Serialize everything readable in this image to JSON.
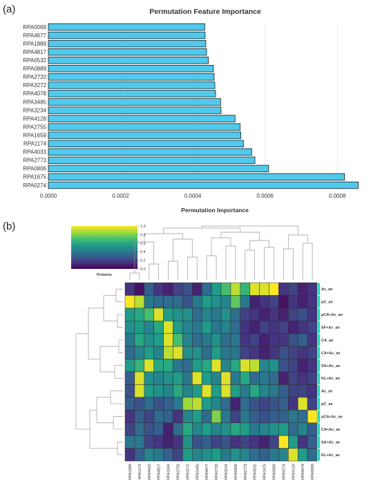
{
  "panels": {
    "a": "(a)",
    "b": "(b)"
  },
  "colors": {
    "bar_fill": "#4fc9ec",
    "bar_stroke": "#1a1a1a",
    "grid": "#e6e6e6",
    "row_side": "#22d8b8"
  },
  "chart_data": [
    {
      "type": "bar",
      "orientation": "horizontal",
      "title": "Permutation Feature Importance",
      "xlabel": "Permutation Importance",
      "ylabel": "",
      "xlim": [
        0,
        0.00088
      ],
      "xticks": [
        "0.0000",
        "0.0002",
        "0.0004",
        "0.0006",
        "0.0008"
      ],
      "xtick_values": [
        0,
        0.0002,
        0.0004,
        0.0006,
        0.0008
      ],
      "categories": [
        "RPA0069",
        "RPA4677",
        "RPA1889",
        "RPA4817",
        "RPA0532",
        "RPA0889",
        "RPA2720",
        "RPA3272",
        "RPA4078",
        "RPA3485",
        "RPA3234",
        "RPA4128",
        "RPA2755",
        "RPA1659",
        "RPA1174",
        "RPA4033",
        "RPA2773",
        "RPA0806",
        "RPA1675",
        "RPA0274"
      ],
      "values": [
        0.000433,
        0.000434,
        0.000436,
        0.000438,
        0.000443,
        0.000457,
        0.000459,
        0.000461,
        0.000463,
        0.000477,
        0.000478,
        0.000517,
        0.000531,
        0.000533,
        0.00054,
        0.000563,
        0.000572,
        0.00061,
        0.00082,
        0.000858
      ]
    },
    {
      "type": "heatmap",
      "colorbar_label": "Proteins",
      "colorbar_ticks": [
        "1.0",
        "0.8",
        "0.6",
        "0.4",
        "0.2",
        "0.0"
      ],
      "colormap": [
        "#440154",
        "#46327e",
        "#365c8d",
        "#277f8e",
        "#1fa187",
        "#4ac16d",
        "#a0da39",
        "#fde725"
      ],
      "columns": [
        "RPA1889",
        "RPA1174",
        "RPA4033",
        "RPA4817",
        "RPA1659",
        "RPA2755",
        "RPA3272",
        "RPA3485",
        "RPA4677",
        "RPA2720",
        "RPA3234",
        "RPA0806",
        "RPA2773",
        "RPA0532",
        "RPA1675",
        "RPA0889",
        "RPA0274",
        "RPA4128",
        "RPA4078",
        "RPA0069"
      ],
      "rows": [
        "Ac_an",
        "pC_an",
        "pCA+Ac_an",
        "SF+Ac_an",
        "CA_an",
        "CA+Ac_an",
        "SA+Ac_an",
        "KL+Ac_an",
        "Ac_ae",
        "pC_ae",
        "pCA+Ac_ae",
        "CA+Ac_ae",
        "SA+Ac_ae",
        "KL+Ac_ae"
      ],
      "values": [
        [
          0.15,
          0.05,
          0.3,
          0.15,
          0.1,
          0.2,
          0.25,
          0.1,
          0.35,
          0.55,
          0.7,
          0.9,
          0.65,
          0.95,
          0.95,
          1.0,
          0.15,
          0.2,
          0.1,
          0.15
        ],
        [
          1.0,
          0.9,
          0.4,
          0.35,
          0.35,
          0.35,
          0.25,
          0.4,
          0.55,
          0.5,
          0.45,
          0.75,
          0.4,
          0.1,
          0.15,
          0.2,
          0.05,
          0.15,
          0.1,
          0.15
        ],
        [
          0.55,
          0.6,
          0.7,
          0.95,
          0.55,
          0.5,
          0.5,
          0.35,
          0.45,
          0.4,
          0.5,
          0.35,
          0.2,
          0.15,
          0.1,
          0.15,
          0.1,
          0.2,
          0.25,
          0.15
        ],
        [
          0.5,
          0.55,
          0.45,
          0.6,
          0.95,
          0.55,
          0.45,
          0.4,
          0.55,
          0.4,
          0.45,
          0.35,
          0.15,
          0.1,
          0.2,
          0.15,
          0.2,
          0.1,
          0.15,
          0.2
        ],
        [
          0.4,
          0.6,
          0.5,
          0.55,
          0.95,
          0.7,
          0.45,
          0.35,
          0.4,
          0.5,
          0.35,
          0.4,
          0.15,
          0.2,
          0.1,
          0.15,
          0.15,
          0.25,
          0.3,
          0.15
        ],
        [
          0.35,
          0.45,
          0.55,
          0.45,
          0.9,
          0.95,
          0.5,
          0.5,
          0.35,
          0.55,
          0.4,
          0.4,
          0.2,
          0.15,
          0.1,
          0.15,
          0.25,
          0.2,
          0.15,
          0.2
        ],
        [
          0.55,
          0.65,
          0.95,
          0.6,
          0.6,
          0.4,
          0.35,
          0.55,
          0.6,
          0.95,
          0.45,
          0.6,
          0.95,
          0.9,
          0.45,
          0.5,
          0.25,
          0.2,
          0.1,
          0.15
        ],
        [
          0.3,
          0.95,
          0.5,
          0.45,
          0.5,
          0.55,
          0.4,
          0.95,
          0.55,
          0.45,
          0.95,
          0.4,
          0.6,
          0.35,
          0.4,
          0.35,
          0.1,
          0.2,
          0.15,
          0.2
        ],
        [
          0.25,
          0.95,
          0.55,
          0.5,
          0.45,
          0.6,
          0.45,
          0.55,
          0.95,
          0.55,
          0.95,
          0.55,
          0.4,
          0.6,
          0.45,
          0.4,
          0.3,
          0.2,
          0.2,
          0.15
        ],
        [
          0.3,
          0.25,
          0.35,
          0.25,
          0.3,
          0.4,
          0.85,
          0.9,
          0.55,
          0.45,
          0.35,
          0.1,
          0.35,
          0.25,
          0.2,
          0.25,
          0.3,
          0.15,
          0.95,
          0.2
        ],
        [
          0.15,
          0.3,
          0.2,
          0.35,
          0.3,
          0.15,
          0.45,
          0.55,
          0.35,
          0.8,
          0.4,
          0.2,
          0.4,
          0.3,
          0.25,
          0.3,
          0.3,
          0.4,
          0.35,
          1.0
        ],
        [
          0.2,
          0.35,
          0.25,
          0.3,
          0.1,
          0.35,
          0.6,
          0.45,
          0.55,
          0.45,
          0.5,
          0.6,
          0.55,
          0.4,
          0.45,
          0.5,
          0.55,
          0.35,
          0.45,
          0.3
        ],
        [
          0.4,
          0.4,
          0.2,
          0.15,
          0.1,
          0.15,
          0.5,
          0.25,
          0.3,
          0.2,
          0.25,
          0.15,
          0.2,
          0.15,
          0.1,
          0.2,
          1.0,
          0.55,
          0.15,
          0.3
        ],
        [
          0.15,
          0.3,
          0.45,
          0.4,
          0.3,
          0.2,
          0.55,
          0.45,
          0.5,
          0.55,
          0.4,
          0.5,
          0.45,
          0.35,
          0.3,
          0.4,
          0.45,
          0.95,
          0.55,
          0.35
        ]
      ]
    }
  ]
}
